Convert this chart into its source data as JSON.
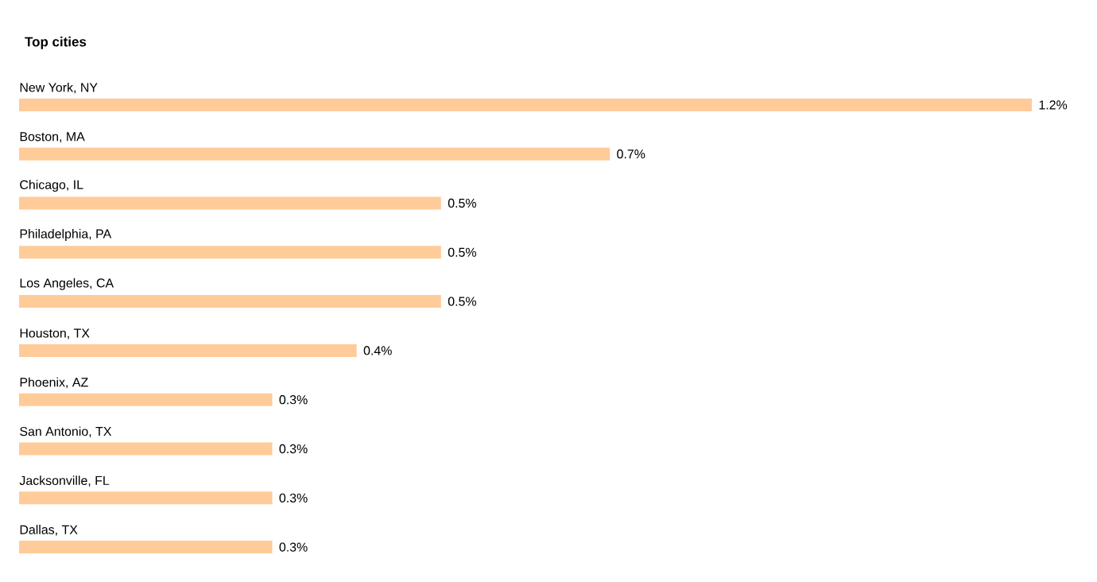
{
  "chart_data": {
    "type": "bar",
    "orientation": "horizontal",
    "title": "Top cities",
    "categories": [
      "New York, NY",
      "Boston, MA",
      "Chicago, IL",
      "Philadelphia, PA",
      "Los Angeles, CA",
      "Houston, TX",
      "Phoenix, AZ",
      "San Antonio, TX",
      "Jacksonville, FL",
      "Dallas, TX"
    ],
    "values": [
      1.2,
      0.7,
      0.5,
      0.5,
      0.5,
      0.4,
      0.3,
      0.3,
      0.3,
      0.3
    ],
    "value_labels": [
      "1.2%",
      "0.7%",
      "0.5%",
      "0.5%",
      "0.5%",
      "0.4%",
      "0.3%",
      "0.3%",
      "0.3%",
      "0.3%"
    ],
    "color": "#ffcb99"
  }
}
